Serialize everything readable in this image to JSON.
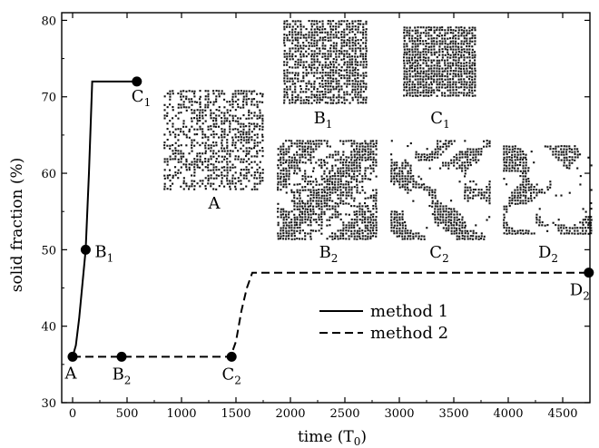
{
  "chart_data": {
    "type": "line",
    "xlabel": "time (T",
    "xlabel_sub": "0",
    "xlabel_close": ")",
    "ylabel": "solid fraction (%)",
    "xlim": [
      -100,
      4750
    ],
    "ylim": [
      30,
      81
    ],
    "xticks": [
      0,
      500,
      1000,
      1500,
      2000,
      2500,
      3000,
      3500,
      4000,
      4500
    ],
    "yticks": [
      30,
      40,
      50,
      60,
      70,
      80
    ],
    "grid": false,
    "legend_position": "center-right",
    "series": [
      {
        "name": "method 1",
        "style": "solid",
        "x": [
          0,
          30,
          60,
          90,
          120,
          150,
          180,
          600
        ],
        "y": [
          36,
          37.5,
          41,
          45.5,
          50,
          60,
          72,
          72
        ]
      },
      {
        "name": "method 2",
        "style": "dashed",
        "x": [
          0,
          1450,
          1500,
          1550,
          1600,
          1650,
          4750
        ],
        "y": [
          36,
          36,
          38,
          42,
          45,
          47,
          47
        ]
      }
    ],
    "points": [
      {
        "label": "A",
        "sub": "",
        "x": 0,
        "y": 36
      },
      {
        "label": "B",
        "sub": "1",
        "x": 120,
        "y": 50
      },
      {
        "label": "C",
        "sub": "1",
        "x": 590,
        "y": 72
      },
      {
        "label": "B",
        "sub": "2",
        "x": 450,
        "y": 36
      },
      {
        "label": "C",
        "sub": "2",
        "x": 1460,
        "y": 36
      },
      {
        "label": "D",
        "sub": "2",
        "x": 4740,
        "y": 47
      }
    ]
  },
  "insets": [
    {
      "label": "A",
      "sub": "",
      "density": 0.52,
      "pattern": "uniform"
    },
    {
      "label": "B",
      "sub": "1",
      "density": 0.72,
      "pattern": "uniform"
    },
    {
      "label": "C",
      "sub": "1",
      "density": 0.9,
      "pattern": "uniform"
    },
    {
      "label": "B",
      "sub": "2",
      "density": 0.62,
      "pattern": "clustered"
    },
    {
      "label": "C",
      "sub": "2",
      "density": 0.58,
      "pattern": "branched"
    },
    {
      "label": "D",
      "sub": "2",
      "density": 0.6,
      "pattern": "branched"
    }
  ]
}
